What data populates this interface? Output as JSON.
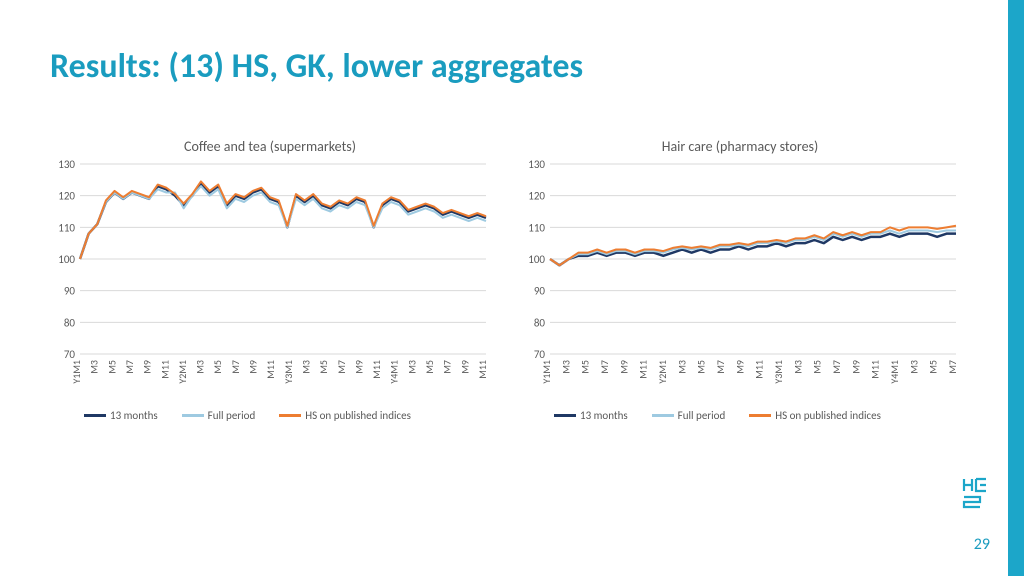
{
  "title": "Results: (13) HS, GK, lower aggregates",
  "page_number": "29",
  "side_bar_color": "#1ca6c9",
  "title_color": "#1a9cbf",
  "axis_text_color": "#595959",
  "grid_color": "#d9d9d9",
  "charts": [
    {
      "title": "Coffee and tea (supermarkets)",
      "ylim": [
        70,
        130
      ],
      "ytick_step": 10,
      "x_labels": [
        "Y1M1",
        "M3",
        "M5",
        "M7",
        "M9",
        "M11",
        "Y2M1",
        "M3",
        "M5",
        "M7",
        "M9",
        "M11",
        "Y3M1",
        "M3",
        "M5",
        "M7",
        "M9",
        "M11",
        "Y4M1",
        "M3",
        "M5",
        "M7",
        "M9",
        "M11"
      ],
      "series": [
        {
          "name": "13 months",
          "color": "#1f3864",
          "width": 2.5,
          "values": [
            100,
            108,
            111,
            118,
            121,
            119,
            121,
            120,
            119,
            123,
            122,
            120,
            117,
            120,
            124,
            121,
            123,
            117,
            120,
            119,
            121,
            122,
            119,
            118,
            110,
            120,
            118,
            120,
            117,
            116,
            118,
            117,
            119,
            118,
            110,
            117,
            119,
            118,
            115,
            116,
            117,
            116,
            114,
            115,
            114,
            113,
            114,
            113
          ]
        },
        {
          "name": "Full period",
          "color": "#9ecae1",
          "width": 2,
          "values": [
            100,
            108,
            111,
            118,
            121,
            119,
            121,
            120,
            119,
            122,
            121,
            121,
            116,
            120,
            123,
            120,
            122,
            116,
            119,
            118,
            120,
            121,
            118,
            117,
            110,
            119,
            117,
            119,
            116,
            115,
            117,
            116,
            118,
            117,
            110,
            116,
            118,
            117,
            114,
            115,
            116,
            115,
            113,
            114,
            113,
            112,
            113,
            112
          ]
        },
        {
          "name": "HS on published indices",
          "color": "#ed7d31",
          "width": 2,
          "values": [
            100,
            108,
            111,
            118.5,
            121.5,
            119.5,
            121.5,
            120.5,
            119.5,
            123.5,
            122.5,
            120.5,
            117.5,
            120.5,
            124.5,
            121.5,
            123.5,
            117.5,
            120.5,
            119.5,
            121.5,
            122.5,
            119.5,
            118.5,
            110.5,
            120.5,
            118.5,
            120.5,
            117.5,
            116.5,
            118.5,
            117.5,
            119.5,
            118.5,
            110.5,
            117.5,
            119.5,
            118.5,
            115.5,
            116.5,
            117.5,
            116.5,
            114.5,
            115.5,
            114.5,
            113.5,
            114.5,
            113.5
          ]
        }
      ]
    },
    {
      "title": "Hair care (pharmacy stores)",
      "ylim": [
        70,
        130
      ],
      "ytick_step": 10,
      "x_labels": [
        "Y1M1",
        "M3",
        "M5",
        "M7",
        "M9",
        "M11",
        "Y2M1",
        "M3",
        "M5",
        "M7",
        "M9",
        "M11",
        "Y3M1",
        "M3",
        "M5",
        "M7",
        "M9",
        "M11",
        "Y4M1",
        "M3",
        "M5",
        "M7"
      ],
      "series": [
        {
          "name": "13 months",
          "color": "#1f3864",
          "width": 2.5,
          "values": [
            100,
            98,
            100,
            101,
            101,
            102,
            101,
            102,
            102,
            101,
            102,
            102,
            101,
            102,
            103,
            102,
            103,
            102,
            103,
            103,
            104,
            103,
            104,
            104,
            105,
            104,
            105,
            105,
            106,
            105,
            107,
            106,
            107,
            106,
            107,
            107,
            108,
            107,
            108,
            108,
            108,
            107,
            108,
            108
          ]
        },
        {
          "name": "Full period",
          "color": "#9ecae1",
          "width": 2,
          "values": [
            100,
            98,
            100,
            101.5,
            101.5,
            102.5,
            101.5,
            102.5,
            102.5,
            101.5,
            102.5,
            102.5,
            102,
            103,
            103.5,
            103,
            103.5,
            103,
            104,
            104,
            104.5,
            104,
            105,
            105,
            105.5,
            105,
            106,
            106,
            107,
            106,
            108,
            107,
            108,
            107,
            108,
            108,
            109,
            108,
            109,
            109,
            109,
            108.5,
            109,
            109
          ]
        },
        {
          "name": "HS on published indices",
          "color": "#ed7d31",
          "width": 2,
          "values": [
            100,
            98,
            100,
            102,
            102,
            103,
            102,
            103,
            103,
            102,
            103,
            103,
            102.5,
            103.5,
            104,
            103.5,
            104,
            103.5,
            104.5,
            104.5,
            105,
            104.5,
            105.5,
            105.5,
            106,
            105.5,
            106.5,
            106.5,
            107.5,
            106.5,
            108.5,
            107.5,
            108.5,
            107.5,
            108.5,
            108.5,
            110,
            109,
            110,
            110,
            110,
            109.5,
            110,
            110.5
          ]
        }
      ]
    }
  ],
  "legend": [
    {
      "label": "13 months",
      "color": "#1f3864"
    },
    {
      "label": "Full period",
      "color": "#9ecae1"
    },
    {
      "label": "HS on published indices",
      "color": "#ed7d31"
    }
  ],
  "logo_color": "#1ca6c9"
}
